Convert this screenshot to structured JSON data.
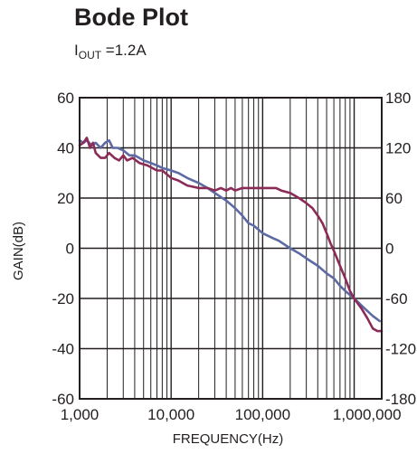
{
  "header": {
    "title": "Bode Plot",
    "subtitle_main": "I",
    "subtitle_sub": "OUT",
    "subtitle_rest": " =1.2A"
  },
  "chart_data": {
    "type": "line",
    "title": "Bode Plot",
    "subtitle": "IOUT =1.2A",
    "xlabel": "FREQUENCY(Hz)",
    "ylabel": "GAIN(dB)",
    "x_scale": "log",
    "xlim": [
      1000,
      2000000
    ],
    "ylim": [
      -60,
      60
    ],
    "y2lim": [
      -180,
      180
    ],
    "grid": true,
    "x_ticks": [
      {
        "value": 1000,
        "label": "1,000"
      },
      {
        "value": 10000,
        "label": "10,000"
      },
      {
        "value": 100000,
        "label": "100,000"
      },
      {
        "value": 1000000,
        "label": "1,000,000"
      }
    ],
    "y_ticks": [
      60,
      40,
      20,
      0,
      -20,
      -40,
      -60
    ],
    "y_tick_labels": [
      "60",
      "40",
      "20",
      "0",
      "-20",
      "-40",
      "-60"
    ],
    "y2_ticks": [
      180,
      120,
      60,
      0,
      -60,
      -120,
      -180
    ],
    "y2_tick_labels": [
      "180",
      "120",
      "60",
      "0",
      "-60",
      "-120",
      "-180"
    ],
    "series": [
      {
        "color": "#5d6aa3",
        "axis": "left",
        "points": [
          [
            1000,
            43
          ],
          [
            1100,
            42
          ],
          [
            1200,
            43
          ],
          [
            1350,
            41
          ],
          [
            1500,
            42
          ],
          [
            1700,
            40
          ],
          [
            1900,
            42
          ],
          [
            2100,
            43
          ],
          [
            2300,
            40
          ],
          [
            2600,
            40
          ],
          [
            3000,
            39
          ],
          [
            3500,
            37
          ],
          [
            4000,
            37
          ],
          [
            5000,
            35
          ],
          [
            6000,
            34
          ],
          [
            7000,
            33
          ],
          [
            8000,
            32
          ],
          [
            10000,
            31
          ],
          [
            12000,
            30
          ],
          [
            15000,
            28
          ],
          [
            20000,
            26
          ],
          [
            25000,
            24
          ],
          [
            30000,
            22
          ],
          [
            40000,
            19
          ],
          [
            50000,
            16
          ],
          [
            60000,
            13
          ],
          [
            70000,
            10
          ],
          [
            80000,
            9
          ],
          [
            100000,
            6
          ],
          [
            130000,
            4
          ],
          [
            150000,
            3
          ],
          [
            200000,
            0
          ],
          [
            250000,
            -2
          ],
          [
            300000,
            -4
          ],
          [
            400000,
            -7
          ],
          [
            500000,
            -10
          ],
          [
            600000,
            -12
          ],
          [
            700000,
            -15
          ],
          [
            800000,
            -17
          ],
          [
            1000000,
            -20
          ],
          [
            1300000,
            -24
          ],
          [
            1600000,
            -27
          ],
          [
            1900000,
            -29
          ]
        ]
      },
      {
        "color": "#8b2b57",
        "axis": "left",
        "points": [
          [
            1000,
            41
          ],
          [
            1100,
            42
          ],
          [
            1200,
            44
          ],
          [
            1300,
            40
          ],
          [
            1400,
            42
          ],
          [
            1500,
            38
          ],
          [
            1700,
            36
          ],
          [
            1900,
            36
          ],
          [
            2100,
            38
          ],
          [
            2400,
            36
          ],
          [
            2700,
            35
          ],
          [
            3000,
            37
          ],
          [
            3300,
            35
          ],
          [
            3800,
            36
          ],
          [
            4500,
            34
          ],
          [
            5500,
            33
          ],
          [
            7000,
            31
          ],
          [
            8000,
            31
          ],
          [
            10000,
            28
          ],
          [
            12000,
            27
          ],
          [
            15000,
            25
          ],
          [
            20000,
            24
          ],
          [
            25000,
            24
          ],
          [
            30000,
            23
          ],
          [
            35000,
            24
          ],
          [
            40000,
            23
          ],
          [
            45000,
            24
          ],
          [
            50000,
            23
          ],
          [
            60000,
            24
          ],
          [
            70000,
            24
          ],
          [
            80000,
            24
          ],
          [
            100000,
            24
          ],
          [
            120000,
            24
          ],
          [
            140000,
            24
          ],
          [
            160000,
            23
          ],
          [
            200000,
            22
          ],
          [
            250000,
            20
          ],
          [
            300000,
            18
          ],
          [
            350000,
            16
          ],
          [
            400000,
            13
          ],
          [
            450000,
            10
          ],
          [
            500000,
            6
          ],
          [
            550000,
            2
          ],
          [
            600000,
            -1
          ],
          [
            700000,
            -7
          ],
          [
            800000,
            -12
          ],
          [
            900000,
            -17
          ],
          [
            1000000,
            -20
          ],
          [
            1200000,
            -24
          ],
          [
            1400000,
            -28
          ],
          [
            1600000,
            -32
          ],
          [
            1800000,
            -33
          ],
          [
            2000000,
            -33
          ]
        ]
      }
    ]
  }
}
